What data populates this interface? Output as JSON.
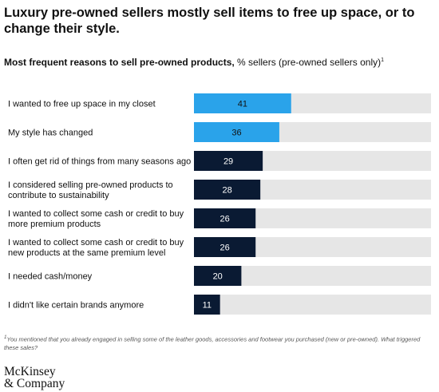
{
  "header": {
    "title": "Luxury pre-owned sellers mostly sell items to free up space, or to change their style.",
    "subtitle_strong": "Most frequent reasons to sell pre-owned products,",
    "subtitle_rest": " % sellers (pre-owned sellers only)",
    "subtitle_mark": "1"
  },
  "chart_data": {
    "type": "bar",
    "orientation": "horizontal",
    "categories": [
      "I wanted to free up space in my closet",
      "My style has changed",
      "I often get rid of things from many seasons ago",
      "I considered selling pre-owned products to contribute to sustainability",
      "I wanted to collect some cash or credit to buy more premium products",
      "I wanted to collect some cash or credit to buy new products at the same premium level",
      "I needed cash/money",
      "I didn't like certain brands anymore"
    ],
    "category_lines": [
      [
        "I wanted to free up space in my closet"
      ],
      [
        "My style has changed"
      ],
      [
        "I often get rid of things from many seasons ago"
      ],
      [
        "I considered selling pre-owned products to",
        "contribute to sustainability"
      ],
      [
        "I wanted to collect some cash or credit to buy",
        "more premium products"
      ],
      [
        "I wanted to collect some cash or credit to buy",
        "new products at the same premium level"
      ],
      [
        "I needed cash/money"
      ],
      [
        "I didn't like certain brands anymore"
      ]
    ],
    "values": [
      41,
      36,
      29,
      28,
      26,
      26,
      20,
      11
    ],
    "highlight_top_n": 2,
    "xlim": [
      0,
      100
    ],
    "grid": false,
    "colors": {
      "highlight": "#2aa3ea",
      "bar": "#0a1a33",
      "track": "#e6e6e6",
      "highlight_label": "#111111",
      "bar_label": "#ffffff",
      "category_text": "#111111"
    }
  },
  "footnote": {
    "mark": "1",
    "text": "You mentioned that you already engaged in selling some of the leather goods, accessories and footwear you purchased (new or pre-owned). What triggered these sales?"
  },
  "logo": {
    "line1": "McKinsey",
    "line2": "& Company"
  }
}
